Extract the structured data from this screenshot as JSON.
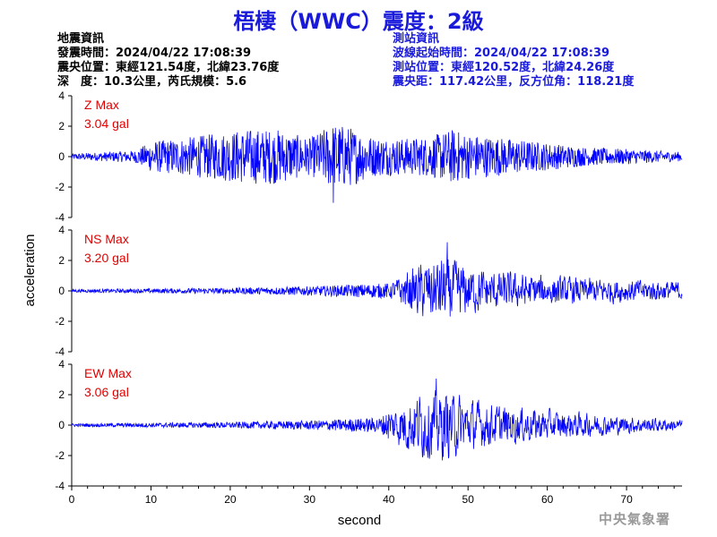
{
  "header": {
    "title": "梧棲（WWC）震度：2級"
  },
  "quake_info": {
    "heading": "地震資訊",
    "origin_time": "發震時間：2024/04/22 17:08:39",
    "epicenter": "震央位置：東經121.54度，北緯23.76度",
    "depth_magnitude": "深　度：10.3公里，芮氏規模：5.6"
  },
  "station_info": {
    "heading": "測站資訊",
    "wave_onset": "波線起始時間：2024/04/22 17:08:39",
    "station_location": "測站位置：東經120.52度，北緯24.26度",
    "distance_azimuth": "震央距：117.42公里，反方位角：118.21度"
  },
  "footer": {
    "agency": "中央氣象署"
  },
  "colors": {
    "trace": "#0000ff",
    "max_label": "#e00000",
    "title": "#1a1adb",
    "axis": "#000000"
  },
  "chart_data": {
    "type": "line",
    "xlabel": "second",
    "ylabel": "acceleration",
    "xlim": [
      0,
      77
    ],
    "ylim": [
      -4,
      4
    ],
    "xticks": [
      0,
      10,
      20,
      30,
      40,
      50,
      60,
      70
    ],
    "yticks": [
      -4,
      -2,
      0,
      2,
      4
    ],
    "grid": false,
    "series": [
      {
        "name": "Z",
        "max_label": "Z Max",
        "max_value": "3.04 gal",
        "peak": 3.04,
        "envelope": [
          [
            0,
            0.2
          ],
          [
            8,
            0.4
          ],
          [
            10,
            1.0
          ],
          [
            15,
            1.3
          ],
          [
            22,
            1.8
          ],
          [
            26,
            1.8
          ],
          [
            30,
            1.2
          ],
          [
            33,
            2.2
          ],
          [
            35,
            2.0
          ],
          [
            38,
            1.3
          ],
          [
            42,
            1.2
          ],
          [
            45,
            1.3
          ],
          [
            48,
            1.8
          ],
          [
            50,
            1.5
          ],
          [
            55,
            1.2
          ],
          [
            60,
            0.9
          ],
          [
            65,
            0.6
          ],
          [
            70,
            0.5
          ],
          [
            77,
            0.3
          ]
        ]
      },
      {
        "name": "NS",
        "max_label": "NS Max",
        "max_value": "3.20 gal",
        "peak": 3.2,
        "envelope": [
          [
            0,
            0.1
          ],
          [
            20,
            0.2
          ],
          [
            30,
            0.3
          ],
          [
            40,
            0.5
          ],
          [
            42,
            1.3
          ],
          [
            44,
            2.0
          ],
          [
            47,
            2.6
          ],
          [
            49,
            2.0
          ],
          [
            52,
            1.5
          ],
          [
            56,
            1.3
          ],
          [
            62,
            1.0
          ],
          [
            68,
            0.9
          ],
          [
            77,
            0.7
          ]
        ]
      },
      {
        "name": "EW",
        "max_label": "EW Max",
        "max_value": "3.06 gal",
        "peak": 3.06,
        "envelope": [
          [
            0,
            0.1
          ],
          [
            20,
            0.2
          ],
          [
            30,
            0.3
          ],
          [
            39,
            0.5
          ],
          [
            41,
            1.5
          ],
          [
            44,
            2.4
          ],
          [
            47,
            2.6
          ],
          [
            50,
            1.9
          ],
          [
            53,
            1.5
          ],
          [
            57,
            1.3
          ],
          [
            62,
            1.0
          ],
          [
            68,
            0.7
          ],
          [
            77,
            0.4
          ]
        ]
      }
    ]
  }
}
